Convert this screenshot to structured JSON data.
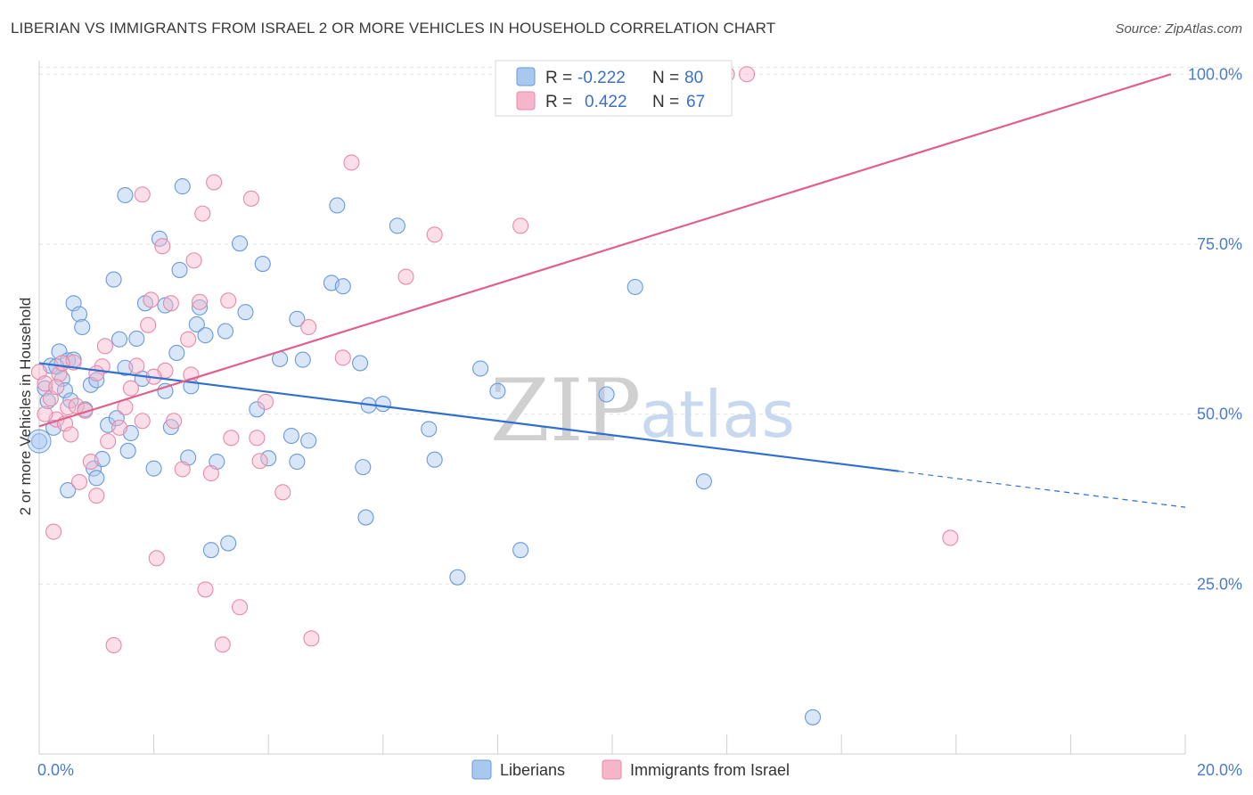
{
  "header": {
    "title": "LIBERIAN VS IMMIGRANTS FROM ISRAEL 2 OR MORE VEHICLES IN HOUSEHOLD CORRELATION CHART",
    "source": "Source: ZipAtlas.com"
  },
  "watermark": {
    "zip": "ZIP",
    "atlas": "atlas"
  },
  "legend": {
    "rows": [
      {
        "r_label": "R =",
        "r_value": "-0.222",
        "n_label": "N =",
        "n_value": "80",
        "color": "#a9c8f0"
      },
      {
        "r_label": "R =",
        "r_value": "0.422",
        "n_label": "N =",
        "n_value": "67",
        "color": "#f6b6c9"
      }
    ]
  },
  "bottom_legend": [
    {
      "label": "Liberians",
      "color": "#a9c8f0"
    },
    {
      "label": "Immigrants from Israel",
      "color": "#f6b6c9"
    }
  ],
  "chart_data": {
    "type": "scatter",
    "title": "LIBERIAN VS IMMIGRANTS FROM ISRAEL 2 OR MORE VEHICLES IN HOUSEHOLD CORRELATION CHART",
    "xlabel": "",
    "ylabel": "2 or more Vehicles in Household",
    "xlim": [
      0,
      20
    ],
    "ylim": [
      0,
      102
    ],
    "x_tick_labels": [
      "0.0%",
      "20.0%"
    ],
    "y_tick_labels": [
      "25.0%",
      "50.0%",
      "75.0%",
      "100.0%"
    ],
    "y_ticks": [
      25,
      50,
      75,
      100
    ],
    "grid": true,
    "legend_position": "top-center",
    "series": [
      {
        "name": "Liberians",
        "color": "#a9c8f0",
        "stroke": "#6a9ad8",
        "trend": {
          "x": [
            0,
            15
          ],
          "y": [
            57.5,
            41.6
          ],
          "dash_to": [
            20,
            36.3
          ],
          "color": "#2f6fd0"
        },
        "points": [
          [
            0.0,
            46.0
          ],
          [
            0.1,
            53.8
          ],
          [
            0.15,
            51.9
          ],
          [
            0.2,
            57.1
          ],
          [
            0.25,
            48.0
          ],
          [
            0.35,
            59.2
          ],
          [
            0.4,
            55.2
          ],
          [
            0.45,
            53.5
          ],
          [
            0.5,
            57.9
          ],
          [
            0.55,
            52.0
          ],
          [
            0.6,
            66.3
          ],
          [
            0.7,
            64.7
          ],
          [
            0.75,
            62.8
          ],
          [
            0.8,
            50.7
          ],
          [
            0.9,
            54.3
          ],
          [
            0.95,
            42.0
          ],
          [
            1.0,
            40.6
          ],
          [
            1.1,
            43.4
          ],
          [
            1.2,
            48.4
          ],
          [
            1.3,
            69.8
          ],
          [
            1.35,
            49.4
          ],
          [
            1.5,
            56.8
          ],
          [
            1.55,
            44.6
          ],
          [
            1.6,
            47.2
          ],
          [
            1.7,
            61.1
          ],
          [
            1.8,
            55.2
          ],
          [
            1.85,
            66.3
          ],
          [
            2.1,
            75.8
          ],
          [
            2.2,
            53.4
          ],
          [
            2.3,
            48.1
          ],
          [
            2.4,
            59.0
          ],
          [
            2.45,
            71.2
          ],
          [
            2.6,
            43.6
          ],
          [
            2.65,
            54.1
          ],
          [
            2.75,
            63.2
          ],
          [
            2.8,
            65.7
          ],
          [
            2.9,
            61.6
          ],
          [
            3.1,
            43.0
          ],
          [
            3.25,
            62.2
          ],
          [
            3.5,
            75.1
          ],
          [
            3.8,
            50.7
          ],
          [
            3.9,
            72.1
          ],
          [
            4.0,
            43.5
          ],
          [
            4.2,
            58.1
          ],
          [
            4.4,
            46.8
          ],
          [
            4.5,
            43.0
          ],
          [
            4.7,
            46.1
          ],
          [
            5.1,
            69.3
          ],
          [
            5.2,
            80.7
          ],
          [
            5.3,
            68.8
          ],
          [
            5.6,
            57.5
          ],
          [
            5.65,
            42.2
          ],
          [
            5.7,
            34.8
          ],
          [
            5.75,
            51.3
          ],
          [
            6.25,
            77.7
          ],
          [
            6.9,
            43.3
          ],
          [
            6.8,
            47.8
          ],
          [
            7.3,
            26.0
          ],
          [
            7.7,
            56.7
          ],
          [
            8.0,
            53.4
          ],
          [
            8.4,
            30.0
          ],
          [
            9.9,
            52.9
          ],
          [
            10.4,
            68.7
          ],
          [
            11.6,
            40.1
          ],
          [
            13.5,
            5.4
          ],
          [
            1.5,
            82.2
          ],
          [
            2.5,
            83.5
          ],
          [
            4.5,
            64.0
          ],
          [
            3.3,
            31.0
          ],
          [
            3.0,
            30.0
          ],
          [
            0.5,
            38.8
          ],
          [
            0.3,
            57.0
          ],
          [
            0.6,
            58.0
          ],
          [
            1.0,
            55.0
          ],
          [
            2.0,
            42.0
          ],
          [
            4.6,
            58.0
          ],
          [
            6.0,
            51.5
          ],
          [
            3.6,
            65.0
          ],
          [
            1.4,
            61.0
          ],
          [
            2.2,
            66.0
          ]
        ]
      },
      {
        "name": "Immigrants from Israel",
        "color": "#f6b6c9",
        "stroke": "#e68aa8",
        "trend": {
          "x": [
            0,
            19.75
          ],
          "y": [
            48.2,
            100
          ],
          "color": "#e0608a"
        },
        "points": [
          [
            0.0,
            56.2
          ],
          [
            0.1,
            54.5
          ],
          [
            0.2,
            52.3
          ],
          [
            0.25,
            32.7
          ],
          [
            0.3,
            49.2
          ],
          [
            0.35,
            55.9
          ],
          [
            0.45,
            48.6
          ],
          [
            0.5,
            51.0
          ],
          [
            0.55,
            47.0
          ],
          [
            0.6,
            57.6
          ],
          [
            0.65,
            51.2
          ],
          [
            0.7,
            40.0
          ],
          [
            0.8,
            50.5
          ],
          [
            0.9,
            43.0
          ],
          [
            1.0,
            38.0
          ],
          [
            1.1,
            57.0
          ],
          [
            1.15,
            60.0
          ],
          [
            1.3,
            16.0
          ],
          [
            1.4,
            48.0
          ],
          [
            1.5,
            51.0
          ],
          [
            1.6,
            53.8
          ],
          [
            1.7,
            57.1
          ],
          [
            1.8,
            82.3
          ],
          [
            1.9,
            63.1
          ],
          [
            1.95,
            66.8
          ],
          [
            2.05,
            28.8
          ],
          [
            2.15,
            74.7
          ],
          [
            2.2,
            56.4
          ],
          [
            2.3,
            66.3
          ],
          [
            2.35,
            49.0
          ],
          [
            2.5,
            41.9
          ],
          [
            2.6,
            61.0
          ],
          [
            2.65,
            55.8
          ],
          [
            2.7,
            72.6
          ],
          [
            2.8,
            66.5
          ],
          [
            2.85,
            79.5
          ],
          [
            2.9,
            24.2
          ],
          [
            3.0,
            41.3
          ],
          [
            3.05,
            84.1
          ],
          [
            3.2,
            16.1
          ],
          [
            3.3,
            66.7
          ],
          [
            3.35,
            46.5
          ],
          [
            3.5,
            21.6
          ],
          [
            3.7,
            81.7
          ],
          [
            3.8,
            46.5
          ],
          [
            3.85,
            43.1
          ],
          [
            3.95,
            51.8
          ],
          [
            4.25,
            38.5
          ],
          [
            4.7,
            62.8
          ],
          [
            4.75,
            17.0
          ],
          [
            5.3,
            58.3
          ],
          [
            5.45,
            87.0
          ],
          [
            6.4,
            70.2
          ],
          [
            6.9,
            76.4
          ],
          [
            8.4,
            77.7
          ],
          [
            10.35,
            100.0
          ],
          [
            11.6,
            100.0
          ],
          [
            12.35,
            100.0
          ],
          [
            15.9,
            31.8
          ],
          [
            0.1,
            50.0
          ],
          [
            1.2,
            46.0
          ],
          [
            0.4,
            57.5
          ],
          [
            2.0,
            55.5
          ],
          [
            1.0,
            56.0
          ],
          [
            0.3,
            54.0
          ],
          [
            1.8,
            49.0
          ],
          [
            12.0,
            100.0
          ]
        ]
      }
    ]
  }
}
